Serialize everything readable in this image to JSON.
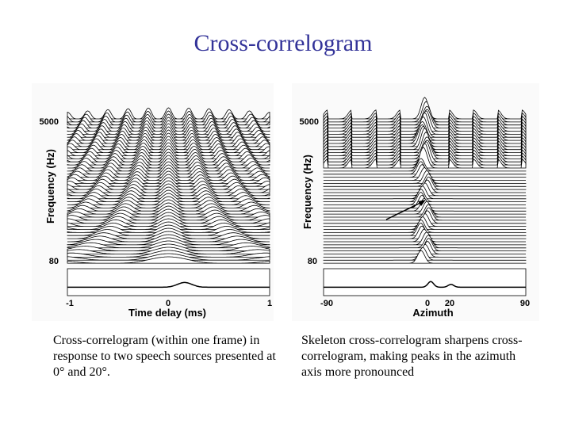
{
  "title": "Cross-correlogram",
  "figures": [
    {
      "y_axis_label": "Frequency (Hz)",
      "y_ticks": [
        "5000",
        "80"
      ],
      "x_axis_label": "Time delay (ms)",
      "x_ticks": [
        "-1",
        "0",
        "1"
      ],
      "caption": "Cross-correlogram (within one frame) in response to two speech sources presented at 0° and 20°."
    },
    {
      "y_axis_label": "Frequency (Hz)",
      "y_ticks": [
        "5000",
        "80"
      ],
      "x_axis_label": "Azimuth",
      "x_ticks": [
        "-90",
        "0",
        "20",
        "90"
      ],
      "caption": "Skeleton cross-correlogram sharpens cross-correlogram, making peaks in the azimuth axis more pronounced"
    }
  ]
}
